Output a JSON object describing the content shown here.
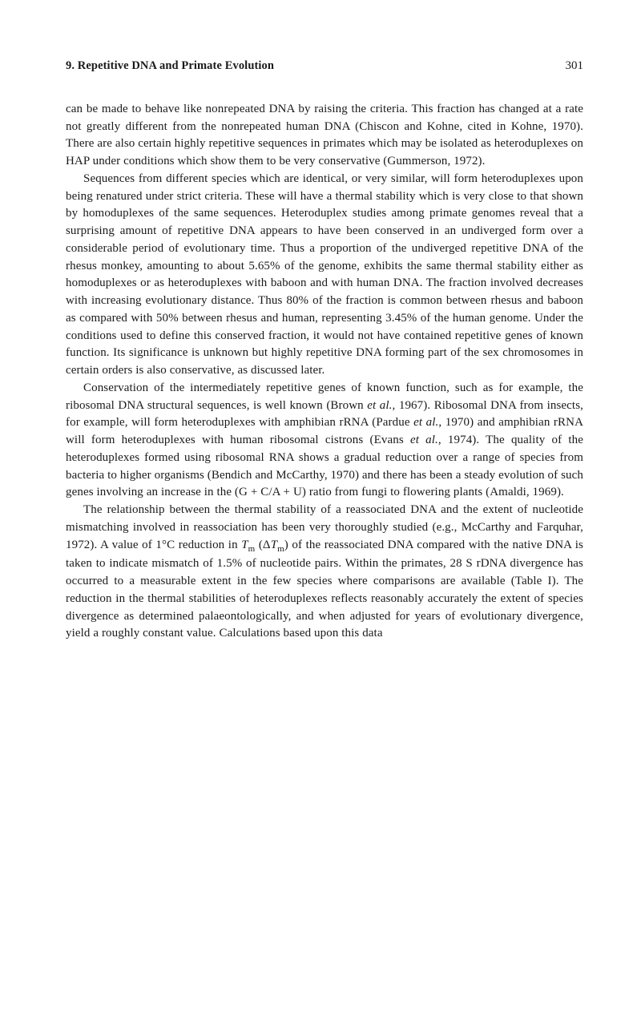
{
  "header": {
    "chapter": "9. Repetitive DNA and Primate Evolution",
    "page": "301"
  },
  "paragraphs": {
    "p1": "can be made to behave like nonrepeated DNA by raising the criteria. This fraction has changed at a rate not greatly different from the nonrepeated human DNA (Chiscon and Kohne, cited in Kohne, 1970). There are also certain highly repetitive sequences in primates which may be isolated as heteroduplexes on HAP under conditions which show them to be very conservative (Gummerson, 1972).",
    "p2": "Sequences from different species which are identical, or very similar, will form heteroduplexes upon being renatured under strict criteria. These will have a thermal stability which is very close to that shown by homoduplexes of the same sequences. Heteroduplex studies among primate genomes reveal that a surprising amount of repetitive DNA appears to have been conserved in an undiverged form over a considerable period of evolutionary time. Thus a proportion of the undiverged repetitive DNA of the rhesus monkey, amounting to about 5.65% of the genome, exhibits the same thermal stability either as homoduplexes or as heteroduplexes with baboon and with human DNA. The fraction involved decreases with increasing evolutionary distance. Thus 80% of the fraction is common between rhesus and baboon as compared with 50% between rhesus and human, representing 3.45% of the human genome. Under the conditions used to define this conserved fraction, it would not have contained repetitive genes of known function. Its significance is unknown but highly repetitive DNA forming part of the sex chromosomes in certain orders is also conservative, as discussed later.",
    "p3_a": "Conservation of the intermediately repetitive genes of known function, such as for example, the ribosomal DNA structural sequences, is well known (Brown ",
    "p3_b": "et al.",
    "p3_c": ", 1967). Ribosomal DNA from insects, for example, will form hetero­duplexes with amphibian rRNA (Pardue ",
    "p3_d": "et al.",
    "p3_e": ", 1970) and amphibian rRNA will form heteroduplexes with human ribosomal cistrons (Evans ",
    "p3_f": "et al.",
    "p3_g": ", 1974). The quality of the heteroduplexes formed using ribosomal RNA shows a gradual reduction over a range of species from bacteria to higher organisms (Bendich and McCarthy, 1970) and there has been a steady evolution of such genes involving an increase in the (G + C/A + U) ratio from fungi to flowering plants (Amaldi, 1969).",
    "p4_a": "The relationship between the thermal stability of a reassociated DNA and the extent of nucleotide mismatching involved in reassociation has been very thor­oughly studied (e.g., McCarthy and Farquhar, 1972). A value of 1°C reduction in ",
    "p4_Tm1_T": "T",
    "p4_Tm1_m": "m",
    "p4_b": " (Δ",
    "p4_Tm2_T": "T",
    "p4_Tm2_m": "m",
    "p4_c": ") of the reassociated DNA compared with the native DNA is taken to indicate mismatch of 1.5% of nucleotide pairs. Within the primates, 28 S rDNA divergence has occurred to a measurable extent in the few species where comparisons are available (Table I). The reduction in the thermal stabilities of heteroduplexes reflects reasonably accurately the extent of species divergence as determined palaeontologically, and when adjusted for years of evolutionary divergence, yield a roughly constant value. Calculations based upon this data"
  }
}
